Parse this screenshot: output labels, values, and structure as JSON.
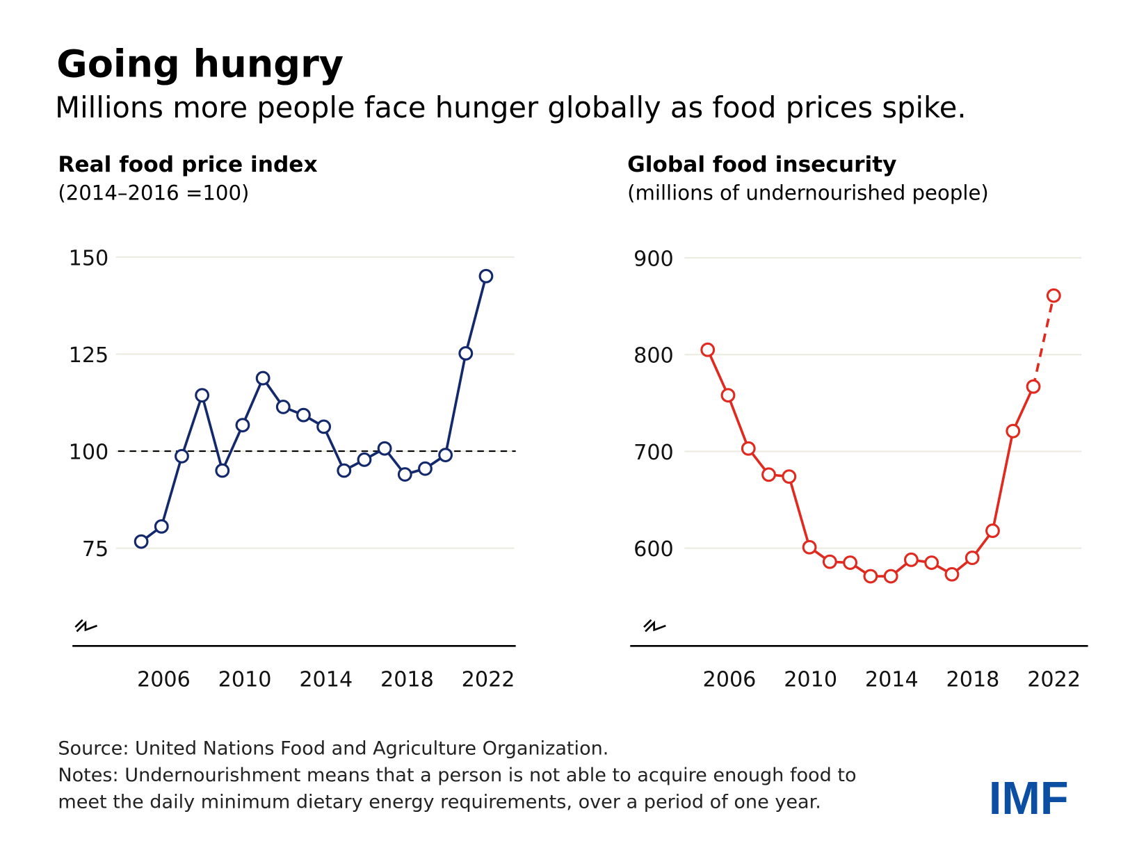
{
  "title": "Going hungry",
  "subtitle": "Millions more people face hunger globally as food prices spike.",
  "source": "Source: United Nations Food and Agriculture Organization.",
  "notes_line1": "Notes: Undernourishment means that a person is not able to acquire enough food to",
  "notes_line2": "meet the daily minimum dietary energy requirements, over a period of one year.",
  "logo": "IMF",
  "colors": {
    "navy": "#14296b",
    "red": "#e02a1f",
    "logo": "#0b4ea2",
    "grid": "#ecebe2"
  },
  "chart_data": [
    {
      "type": "line",
      "title": "Real food price index",
      "subtitle": "(2014–2016 =100)",
      "x": [
        2005,
        2006,
        2007,
        2008,
        2009,
        2010,
        2011,
        2012,
        2013,
        2014,
        2015,
        2016,
        2017,
        2018,
        2019,
        2020,
        2021,
        2022
      ],
      "values": [
        76.7,
        80.6,
        98.7,
        114.4,
        95,
        106.7,
        118.8,
        111.4,
        109.3,
        106.3,
        95,
        97.8,
        100.7,
        94,
        95.5,
        99,
        125.2,
        145.1
      ],
      "ylim": [
        55,
        150
      ],
      "yticks": [
        "75",
        "100",
        "125",
        "150"
      ],
      "xticks": [
        "2006",
        "2010",
        "2014",
        "2018",
        "2022"
      ],
      "reference_line": 100,
      "broken_axis": true,
      "color": "#14296b"
    },
    {
      "type": "line",
      "title": "Global food insecurity",
      "subtitle": "(millions of undernourished people)",
      "x": [
        2005,
        2006,
        2007,
        2008,
        2009,
        2010,
        2011,
        2012,
        2013,
        2014,
        2015,
        2016,
        2017,
        2018,
        2019,
        2020,
        2021,
        2022
      ],
      "values": [
        805,
        758,
        703,
        676,
        674,
        601,
        586,
        585,
        571,
        571,
        588,
        585,
        573,
        590,
        618,
        721,
        767,
        861
      ],
      "projected_from": 2021,
      "ylim": [
        500,
        900
      ],
      "yticks": [
        "600",
        "700",
        "800",
        "900"
      ],
      "xticks": [
        "2006",
        "2010",
        "2014",
        "2018",
        "2022"
      ],
      "broken_axis": true,
      "color": "#e02a1f"
    }
  ]
}
